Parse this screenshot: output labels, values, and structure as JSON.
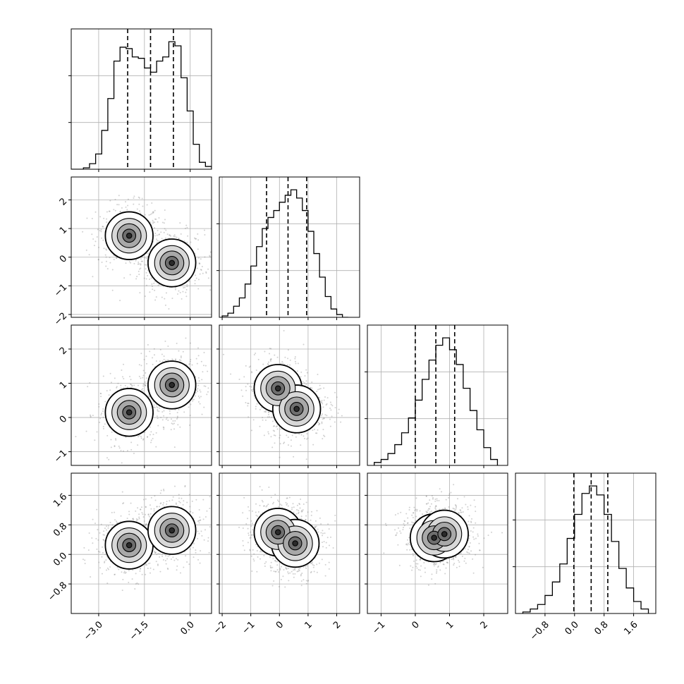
{
  "chart_data": {
    "type": "corner",
    "title": "",
    "grid": true,
    "histogram": {
      "style": "step",
      "color": "#000000",
      "quantile_line_style": "dashed"
    },
    "scatter": {
      "color": "#7a7a7a"
    },
    "density": {
      "colormap": "greys"
    },
    "parameters": [
      {
        "index": 0,
        "range": [
          -3.9,
          0.7
        ],
        "ticks": [
          -3.0,
          -1.5,
          0.0
        ],
        "tick_labels": [
          "−3.0",
          "−1.5",
          "0.0"
        ],
        "quantiles": [
          -2.05,
          -1.3,
          -0.55
        ],
        "hist_edges": [
          -3.9,
          -3.7,
          -3.5,
          -3.3,
          -3.1,
          -2.9,
          -2.7,
          -2.5,
          -2.3,
          -2.1,
          -1.9,
          -1.7,
          -1.5,
          -1.3,
          -1.1,
          -0.9,
          -0.7,
          -0.5,
          -0.3,
          -0.1,
          0.1,
          0.3,
          0.5,
          0.7
        ],
        "hist_counts": [
          0,
          0,
          1,
          4,
          11,
          28,
          51,
          78,
          88,
          87,
          81,
          80,
          73,
          70,
          78,
          81,
          92,
          89,
          66,
          42,
          18,
          5,
          2
        ]
      },
      {
        "index": 1,
        "range": [
          -2.1,
          2.8
        ],
        "ticks": [
          -2,
          -1,
          0,
          1,
          2
        ],
        "tick_labels": [
          "−2",
          "−1",
          "0",
          "1",
          "2"
        ],
        "quantiles": [
          -0.45,
          0.3,
          0.95
        ],
        "hist_edges": [
          -2.0,
          -1.8,
          -1.6,
          -1.4,
          -1.2,
          -1.0,
          -0.8,
          -0.6,
          -0.4,
          -0.2,
          0.0,
          0.2,
          0.4,
          0.6,
          0.8,
          1.0,
          1.2,
          1.4,
          1.6,
          1.8,
          2.0,
          2.2,
          2.4
        ],
        "hist_counts": [
          1,
          3,
          8,
          14,
          24,
          37,
          51,
          64,
          72,
          77,
          83,
          88,
          92,
          86,
          77,
          62,
          46,
          29,
          15,
          6,
          2,
          0
        ]
      },
      {
        "index": 2,
        "range": [
          -1.4,
          2.7
        ],
        "ticks": [
          -1,
          0,
          1,
          2
        ],
        "tick_labels": [
          "−1",
          "0",
          "1",
          "2"
        ],
        "quantiles": [
          0.0,
          0.6,
          1.15
        ],
        "hist_edges": [
          -1.2,
          -1.0,
          -0.8,
          -0.6,
          -0.4,
          -0.2,
          0.0,
          0.2,
          0.4,
          0.6,
          0.8,
          1.0,
          1.2,
          1.4,
          1.6,
          1.8,
          2.0,
          2.2,
          2.4
        ],
        "hist_counts": [
          2,
          4,
          8,
          14,
          22,
          32,
          44,
          58,
          71,
          81,
          86,
          78,
          68,
          52,
          37,
          24,
          12,
          4
        ]
      },
      {
        "index": 3,
        "range": [
          -1.6,
          2.2
        ],
        "ticks": [
          -0.8,
          0.0,
          0.8,
          1.6
        ],
        "tick_labels": [
          "−0.8",
          "0.0",
          "0.8",
          "1.6"
        ],
        "quantiles": [
          -0.02,
          0.45,
          0.9
        ],
        "hist_edges": [
          -1.4,
          -1.2,
          -1.0,
          -0.8,
          -0.6,
          -0.4,
          -0.2,
          0.0,
          0.2,
          0.4,
          0.6,
          0.8,
          1.0,
          1.2,
          1.4,
          1.6,
          1.8,
          2.0
        ],
        "hist_counts": [
          1,
          3,
          6,
          12,
          21,
          33,
          50,
          66,
          80,
          85,
          79,
          66,
          48,
          30,
          17,
          8,
          3
        ]
      }
    ],
    "joint_distributions": [
      {
        "x_param": 0,
        "y_param": 1,
        "modes": [
          {
            "x": -2.0,
            "y": 0.75
          },
          {
            "x": -0.6,
            "y": -0.2
          }
        ]
      },
      {
        "x_param": 0,
        "y_param": 2,
        "modes": [
          {
            "x": -2.0,
            "y": 0.15
          },
          {
            "x": -0.6,
            "y": 0.95
          }
        ]
      },
      {
        "x_param": 1,
        "y_param": 2,
        "modes": [
          {
            "x": -0.05,
            "y": 0.85
          },
          {
            "x": 0.6,
            "y": 0.25
          }
        ]
      },
      {
        "x_param": 0,
        "y_param": 3,
        "modes": [
          {
            "x": -2.0,
            "y": 0.25
          },
          {
            "x": -0.6,
            "y": 0.65
          }
        ]
      },
      {
        "x_param": 1,
        "y_param": 3,
        "modes": [
          {
            "x": -0.05,
            "y": 0.6
          },
          {
            "x": 0.55,
            "y": 0.3
          }
        ]
      },
      {
        "x_param": 2,
        "y_param": 3,
        "modes": [
          {
            "x": 0.55,
            "y": 0.45
          },
          {
            "x": 0.85,
            "y": 0.55
          }
        ]
      }
    ]
  }
}
